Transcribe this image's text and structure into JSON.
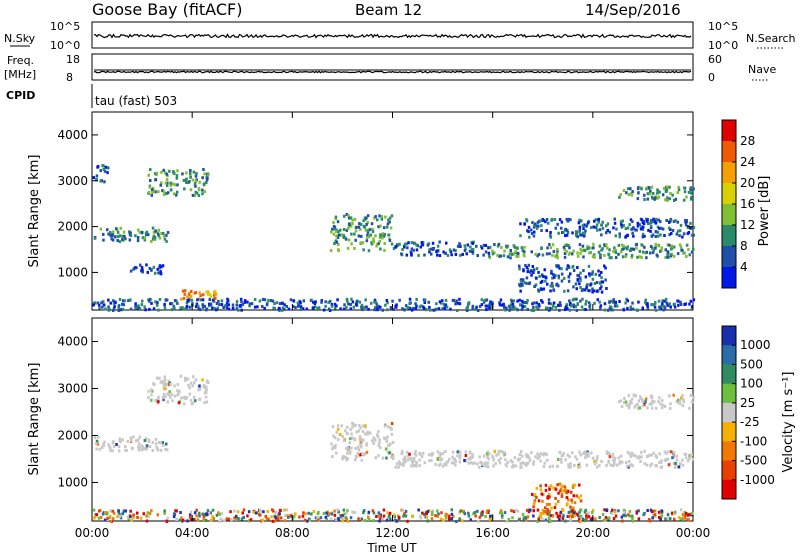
{
  "header": {
    "station": "Goose Bay (fitACF)",
    "beam": "Beam 12",
    "date": "14/Sep/2016"
  },
  "top_panels": {
    "nsky": {
      "label": "N.Sky",
      "ticks": [
        "10^5",
        "10^0"
      ]
    },
    "nsearch": {
      "label": "N.Search",
      "ticks": [
        "10^5",
        "10^0"
      ]
    },
    "freq": {
      "label_line1": "Freq.",
      "label_line2": "[MHz]",
      "ticks": [
        "18",
        "8"
      ]
    },
    "nave": {
      "label": "Nave",
      "ticks": [
        "60",
        "0"
      ]
    },
    "cpid": {
      "label": "CPID",
      "mode_text": "tau (fast) 503"
    }
  },
  "chart_data": [
    {
      "type": "heatmap",
      "name": "power",
      "ylabel": "Slant Range [km]",
      "yticks": [
        1000,
        2000,
        3000,
        4000
      ],
      "ylim": [
        180,
        4500
      ],
      "xticks": [
        "00:00",
        "04:00",
        "08:00",
        "12:00",
        "16:00",
        "20:00",
        "00:00"
      ],
      "xlim_hours": [
        0,
        24
      ],
      "colorbar": {
        "label": "Power [dB]",
        "tick_labels": [
          "28",
          "24",
          "20",
          "16",
          "12",
          "8",
          "4"
        ],
        "colors": [
          "#e00000",
          "#f05a00",
          "#f5a000",
          "#d8d000",
          "#80c030",
          "#2a8a6a",
          "#1f4fa8",
          "#0018e8"
        ]
      },
      "regions": [
        {
          "t": [
            0.05,
            3.0
          ],
          "r": [
            1700,
            2000
          ],
          "level": "mid"
        },
        {
          "t": [
            0.0,
            0.6
          ],
          "r": [
            3000,
            3400
          ],
          "level": "low"
        },
        {
          "t": [
            2.2,
            4.6
          ],
          "r": [
            2700,
            3300
          ],
          "level": "mid"
        },
        {
          "t": [
            1.5,
            2.8
          ],
          "r": [
            1000,
            1200
          ],
          "level": "low"
        },
        {
          "t": [
            3.5,
            5.0
          ],
          "r": [
            450,
            650
          ],
          "level": "high"
        },
        {
          "t": [
            9.5,
            12.0
          ],
          "r": [
            1500,
            2300
          ],
          "level": "mid"
        },
        {
          "t": [
            12.0,
            15.8
          ],
          "r": [
            1400,
            1700
          ],
          "level": "low"
        },
        {
          "t": [
            15.8,
            24.0
          ],
          "r": [
            1350,
            1650
          ],
          "level": "mid"
        },
        {
          "t": [
            17.0,
            24.0
          ],
          "r": [
            1800,
            2200
          ],
          "level": "low"
        },
        {
          "t": [
            21.0,
            24.0
          ],
          "r": [
            2600,
            2900
          ],
          "level": "mid"
        },
        {
          "t": [
            0.0,
            24.0
          ],
          "r": [
            200,
            450
          ],
          "level": "low"
        },
        {
          "t": [
            17.0,
            20.5
          ],
          "r": [
            600,
            1200
          ],
          "level": "low"
        }
      ]
    },
    {
      "type": "heatmap",
      "name": "velocity",
      "ylabel": "Slant Range [km]",
      "yticks": [
        1000,
        2000,
        3000,
        4000
      ],
      "ylim": [
        180,
        4500
      ],
      "xticks": [
        "00:00",
        "04:00",
        "08:00",
        "12:00",
        "16:00",
        "20:00",
        "00:00"
      ],
      "xlabel": "Time UT",
      "xlim_hours": [
        0,
        24
      ],
      "colorbar": {
        "label": "Velocity [m s⁻¹]",
        "tick_labels": [
          "1000",
          "500",
          "100",
          "25",
          "-25",
          "-100",
          "-500",
          "-1000"
        ],
        "colors": [
          "#1a2fb0",
          "#2a6ca8",
          "#2f8c60",
          "#6cc040",
          "#c8c8c8",
          "#f5b000",
          "#f07a00",
          "#e84000",
          "#e00000"
        ]
      },
      "regions": [
        {
          "t": [
            0.05,
            3.0
          ],
          "r": [
            1700,
            2000
          ],
          "level": "grey"
        },
        {
          "t": [
            2.2,
            4.6
          ],
          "r": [
            2700,
            3300
          ],
          "level": "grey"
        },
        {
          "t": [
            9.5,
            12.0
          ],
          "r": [
            1500,
            2300
          ],
          "level": "grey"
        },
        {
          "t": [
            12.0,
            24.0
          ],
          "r": [
            1350,
            1700
          ],
          "level": "grey"
        },
        {
          "t": [
            21.0,
            24.0
          ],
          "r": [
            2600,
            2900
          ],
          "level": "grey"
        },
        {
          "t": [
            0.0,
            24.0
          ],
          "r": [
            200,
            450
          ],
          "level": "mixed"
        },
        {
          "t": [
            17.5,
            19.5
          ],
          "r": [
            300,
            1000
          ],
          "level": "neg"
        }
      ]
    }
  ]
}
